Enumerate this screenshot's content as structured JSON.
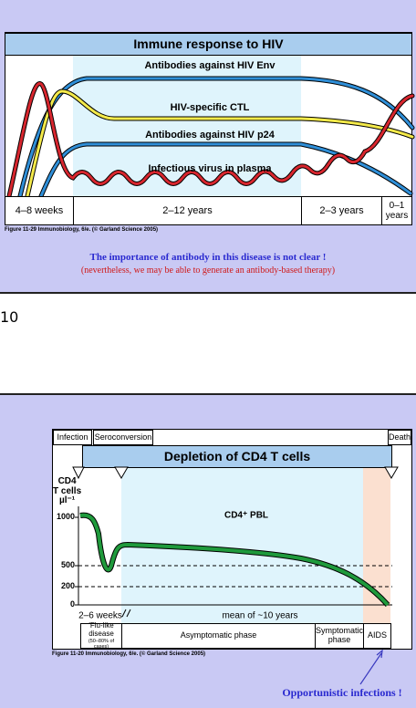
{
  "slide1": {
    "figure": {
      "title": "Immune response to HIV",
      "curve_labels": [
        "Antibodies against HIV Env",
        "HIV-specific CTL",
        "Antibodies against HIV p24",
        "Infectious virus in plasma"
      ],
      "timeline": [
        "4–8 weeks",
        "2–12 years",
        "2–3 years",
        "0–1 years"
      ],
      "caption": "Figure 11-29 Immunobiology, 6/e. (© Garland Science 2005)"
    },
    "note": {
      "main": "The importance of antibody in this disease is not clear !",
      "sub": "(nevertheless, we may be able to generate an antibody-based therapy)"
    }
  },
  "page_number": "10",
  "slide2": {
    "figure": {
      "markers": [
        "Infection",
        "Seroconversion",
        "Death"
      ],
      "title": "Depletion of CD4 T cells",
      "y_label": [
        "CD4",
        "T cells",
        "µl⁻¹"
      ],
      "yticks": [
        "1000",
        "500",
        "200",
        "0"
      ],
      "curve_label": "CD4⁺ PBL",
      "time_labels": [
        "2–6 weeks",
        "mean of ~10 years"
      ],
      "phases": [
        "'Flu-like disease",
        "Asymptomatic phase",
        "Symptomatic phase",
        "AIDS"
      ],
      "phase_note": "(50–80% of cases)",
      "caption": "Figure 11-20 Immunobiology, 6/e. (© Garland Science 2005)"
    },
    "note": "Opportunistic infections !"
  }
}
